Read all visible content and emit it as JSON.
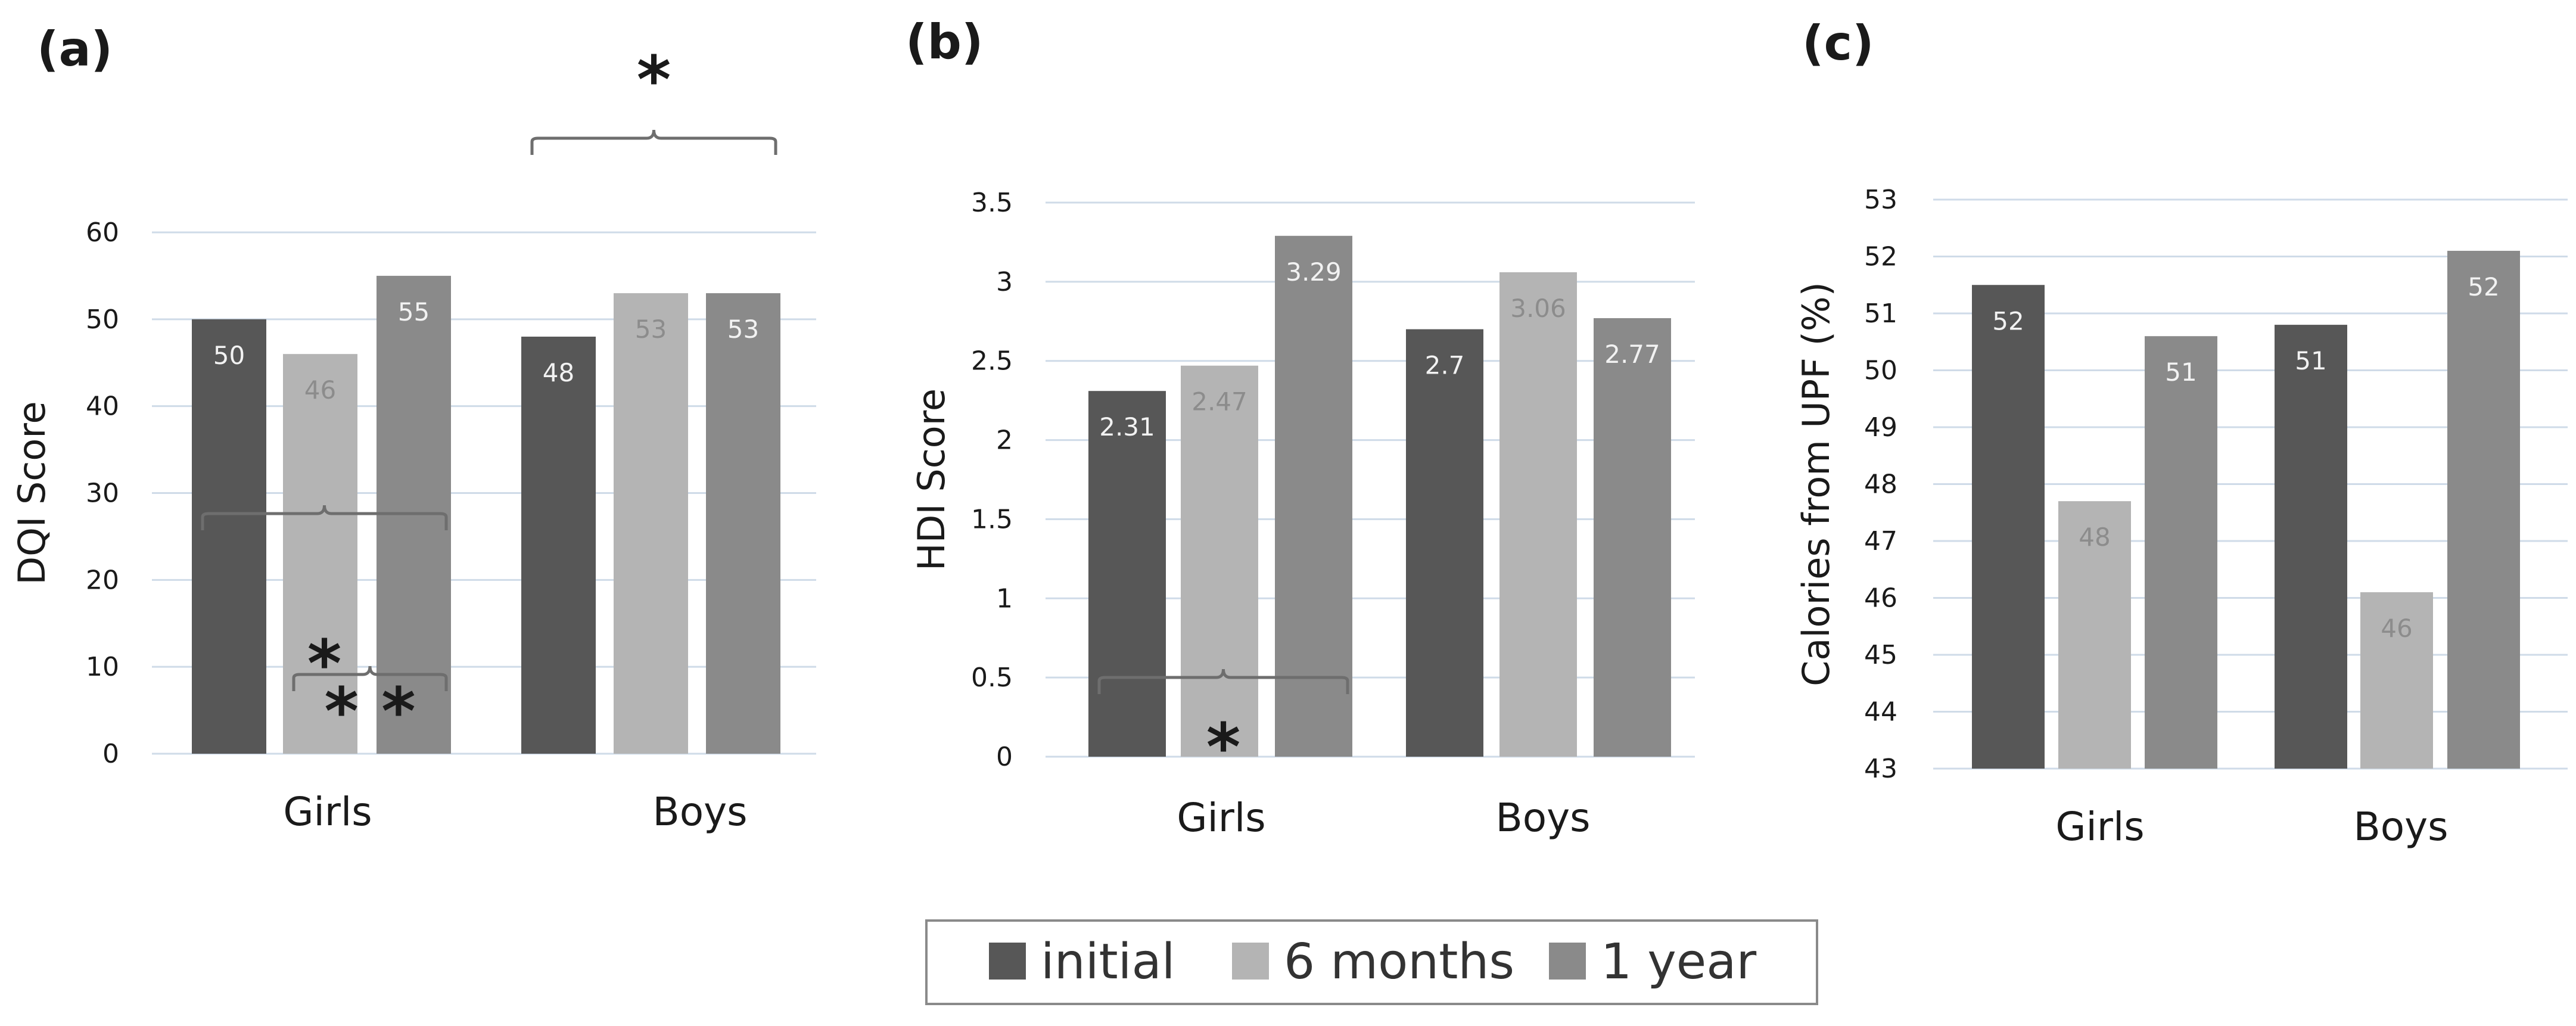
{
  "colors": {
    "initial": "#575757",
    "6 months": "#b4b4b4",
    "1 year": "#8a8a8a",
    "grid": "#cfdbe8",
    "bracket": "#6e6e6e"
  },
  "legend": {
    "items": [
      {
        "name": "initial",
        "color": "#575757"
      },
      {
        "name": "6 months",
        "color": "#b4b4b4"
      },
      {
        "name": "1 year",
        "color": "#8a8a8a"
      }
    ]
  },
  "chart_data": [
    {
      "panel": "(a)",
      "type": "bar",
      "title": "",
      "xlabel": "",
      "ylabel": "DQI Score",
      "categories": [
        "Girls",
        "Boys"
      ],
      "series": [
        {
          "name": "initial",
          "values": [
            50,
            48
          ]
        },
        {
          "name": "6 months",
          "values": [
            46,
            53
          ]
        },
        {
          "name": "1 year",
          "values": [
            55,
            53
          ]
        }
      ],
      "ylim": [
        0,
        60
      ],
      "yticks": [
        0,
        10,
        20,
        30,
        40,
        50,
        60
      ],
      "ytick_labels": [
        "0",
        "10",
        "20",
        "30",
        "40",
        "50",
        "60"
      ],
      "data_labels": [
        [
          "50",
          "48"
        ],
        [
          "46",
          "53"
        ],
        [
          "55",
          "53"
        ]
      ],
      "grid": true,
      "annotations": [
        {
          "text": "*",
          "from": "Girls initial",
          "to": "Girls 1 year",
          "level": 1
        },
        {
          "text": "* *",
          "from": "Girls 6 months",
          "to": "Girls 1 year",
          "level": 0
        },
        {
          "text": "*",
          "from": "Boys initial",
          "to": "Boys 1 year",
          "level": 1
        }
      ]
    },
    {
      "panel": "(b)",
      "type": "bar",
      "title": "",
      "xlabel": "",
      "ylabel": "HDI Score",
      "categories": [
        "Girls",
        "Boys"
      ],
      "series": [
        {
          "name": "initial",
          "values": [
            2.31,
            2.7
          ]
        },
        {
          "name": "6 months",
          "values": [
            2.47,
            3.06
          ]
        },
        {
          "name": "1 year",
          "values": [
            3.29,
            2.77
          ]
        }
      ],
      "ylim": [
        0,
        3.5
      ],
      "yticks": [
        0,
        0.5,
        1,
        1.5,
        2,
        2.5,
        3,
        3.5
      ],
      "ytick_labels": [
        "0",
        "0.5",
        "1",
        "1.5",
        "2",
        "2.5",
        "3",
        "3.5"
      ],
      "data_labels": [
        [
          "2.31",
          "2.7"
        ],
        [
          "2.47",
          "3.06"
        ],
        [
          "3.29",
          "2.77"
        ]
      ],
      "grid": true,
      "annotations": [
        {
          "text": "*",
          "from": "Girls initial",
          "to": "Girls 1 year",
          "level": 1
        }
      ]
    },
    {
      "panel": "(c)",
      "type": "bar",
      "title": "",
      "xlabel": "",
      "ylabel": "Calories from UPF (%)",
      "categories": [
        "Girls",
        "Boys"
      ],
      "series": [
        {
          "name": "initial",
          "values": [
            51.5,
            50.8
          ]
        },
        {
          "name": "6 months",
          "values": [
            47.7,
            46.1
          ]
        },
        {
          "name": "1 year",
          "values": [
            50.6,
            52.1
          ]
        }
      ],
      "ylim": [
        43,
        53
      ],
      "yticks": [
        43,
        44,
        45,
        46,
        47,
        48,
        49,
        50,
        51,
        52,
        53
      ],
      "ytick_labels": [
        "43",
        "44",
        "45",
        "46",
        "47",
        "48",
        "49",
        "50",
        "51",
        "52",
        "53"
      ],
      "data_labels": [
        [
          "52",
          "51"
        ],
        [
          "48",
          "46"
        ],
        [
          "51",
          "52"
        ]
      ],
      "grid": true,
      "annotations": []
    }
  ]
}
